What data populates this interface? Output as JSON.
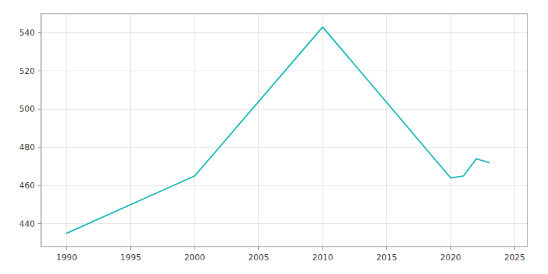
{
  "chart_data": {
    "type": "line",
    "x": [
      1990,
      2000,
      2010,
      2020,
      2021,
      2022,
      2023
    ],
    "values": [
      435,
      465,
      543,
      464,
      465,
      474,
      472
    ],
    "color": "#20BCBC",
    "xlim": [
      1988,
      2026
    ],
    "ylim": [
      428,
      550
    ],
    "xticks": [
      1990,
      1995,
      2000,
      2005,
      2010,
      2015,
      2020,
      2025
    ],
    "yticks": [
      440,
      460,
      480,
      500,
      520,
      540
    ],
    "grid": true
  }
}
